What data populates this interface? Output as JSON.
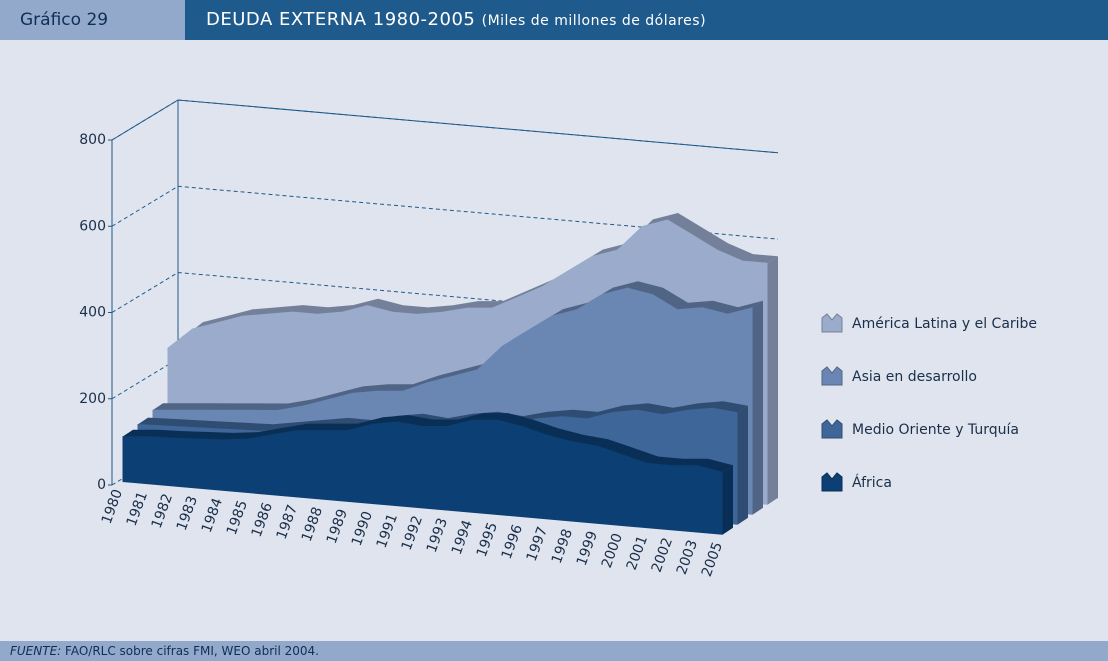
{
  "header": {
    "label": "Gráfico 29"
  },
  "chart_data": {
    "type": "area3d",
    "title": "DEUDA EXTERNA 1980-2005",
    "subtitle": "(Miles de millones de dólares)",
    "categories": [
      "1980",
      "1981",
      "1982",
      "1983",
      "1984",
      "1985",
      "1986",
      "1987",
      "1988",
      "1989",
      "1990",
      "1991",
      "1992",
      "1993",
      "1994",
      "1995",
      "1996",
      "1997",
      "1998",
      "1999",
      "2000",
      "2001",
      "2002",
      "2003",
      "2005"
    ],
    "ylim": [
      0,
      800
    ],
    "yticks": [
      0,
      200,
      400,
      600,
      800
    ],
    "grid": true,
    "series": [
      {
        "name": "América Latina y el Caribe",
        "color": "#9aabcc",
        "values": [
          240,
          290,
          310,
          330,
          340,
          350,
          350,
          360,
          380,
          370,
          370,
          380,
          395,
          400,
          430,
          460,
          500,
          540,
          560,
          620,
          640,
          610,
          580,
          560,
          560
        ]
      },
      {
        "name": "Asia en desarrollo",
        "color": "#6a86b3",
        "values": [
          120,
          125,
          130,
          135,
          140,
          145,
          160,
          180,
          200,
          210,
          215,
          240,
          260,
          280,
          340,
          380,
          420,
          440,
          480,
          500,
          490,
          460,
          470,
          460,
          480
        ]
      },
      {
        "name": "Medio Oriente y Turquía",
        "color": "#3e6699",
        "values": [
          110,
          112,
          114,
          116,
          118,
          120,
          130,
          140,
          150,
          150,
          165,
          175,
          170,
          185,
          195,
          190,
          205,
          215,
          215,
          235,
          245,
          240,
          255,
          265,
          260
        ]
      },
      {
        "name": "África",
        "color": "#0c3f73",
        "values": [
          105,
          110,
          112,
          115,
          118,
          125,
          140,
          155,
          160,
          165,
          185,
          195,
          190,
          195,
          215,
          220,
          210,
          195,
          185,
          180,
          165,
          150,
          150,
          155,
          145
        ]
      }
    ]
  },
  "source": {
    "label": "FUENTE:",
    "text": "FAO/RLC sobre cifras FMI, WEO abril 2004."
  }
}
